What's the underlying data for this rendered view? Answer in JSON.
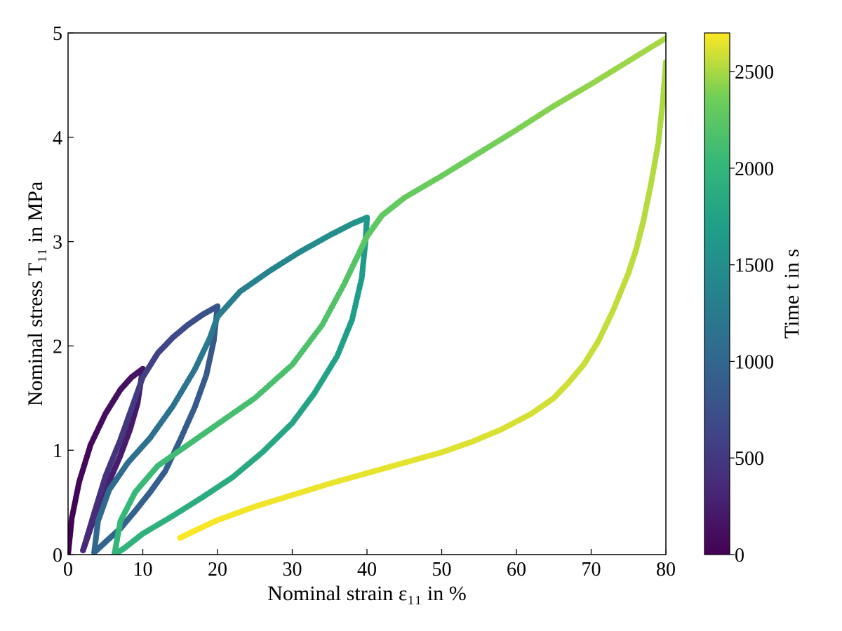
{
  "chart_data": {
    "type": "scatter",
    "xlabel": "Nominal strain ε₁₁ in %",
    "ylabel": "Nominal stress T₁₁ in MPa",
    "colorbar_label": "Time t in s",
    "xlim": [
      0,
      80
    ],
    "ylim": [
      0,
      5
    ],
    "x_ticks": [
      0,
      10,
      20,
      30,
      40,
      50,
      60,
      70,
      80
    ],
    "y_ticks": [
      0,
      1,
      2,
      3,
      4,
      5
    ],
    "colorbar_ticks": [
      0,
      500,
      1000,
      1500,
      2000,
      2500
    ],
    "colorbar_range": [
      0,
      2700
    ],
    "colormap": "viridis",
    "grid": false,
    "segments": [
      {
        "t_start": 0,
        "t_end": 170,
        "points": [
          [
            0,
            0
          ],
          [
            0.5,
            0.35
          ],
          [
            1.5,
            0.7
          ],
          [
            3,
            1.05
          ],
          [
            5,
            1.35
          ],
          [
            7,
            1.58
          ],
          [
            8.5,
            1.7
          ],
          [
            10,
            1.78
          ]
        ]
      },
      {
        "t_start": 170,
        "t_end": 340,
        "points": [
          [
            10,
            1.78
          ],
          [
            9.3,
            1.45
          ],
          [
            8.3,
            1.2
          ],
          [
            7,
            0.95
          ],
          [
            5.5,
            0.7
          ],
          [
            4,
            0.45
          ],
          [
            3,
            0.25
          ],
          [
            2,
            0.04
          ]
        ]
      },
      {
        "t_start": 340,
        "t_end": 560,
        "points": [
          [
            2,
            0.04
          ],
          [
            3.5,
            0.4
          ],
          [
            5,
            0.75
          ],
          [
            7,
            1.1
          ],
          [
            8.5,
            1.4
          ],
          [
            10,
            1.7
          ]
        ]
      },
      {
        "t_start": 560,
        "t_end": 800,
        "points": [
          [
            10,
            1.7
          ],
          [
            12,
            1.93
          ],
          [
            14,
            2.08
          ],
          [
            16,
            2.2
          ],
          [
            18,
            2.3
          ],
          [
            20,
            2.38
          ]
        ]
      },
      {
        "t_start": 800,
        "t_end": 1000,
        "points": [
          [
            20,
            2.38
          ],
          [
            19.5,
            2.05
          ],
          [
            18.5,
            1.72
          ],
          [
            17,
            1.42
          ],
          [
            15,
            1.1
          ],
          [
            13,
            0.8
          ],
          [
            11,
            0.6
          ],
          [
            9,
            0.42
          ],
          [
            7,
            0.25
          ],
          [
            5,
            0.12
          ],
          [
            3.5,
            0.02
          ]
        ]
      },
      {
        "t_start": 1000,
        "t_end": 1250,
        "points": [
          [
            3.5,
            0.02
          ],
          [
            4,
            0.32
          ],
          [
            5.5,
            0.62
          ],
          [
            8,
            0.88
          ],
          [
            11,
            1.12
          ],
          [
            14,
            1.42
          ],
          [
            17,
            1.78
          ],
          [
            19,
            2.08
          ],
          [
            20,
            2.28
          ]
        ]
      },
      {
        "t_start": 1250,
        "t_end": 1600,
        "points": [
          [
            20,
            2.28
          ],
          [
            23,
            2.52
          ],
          [
            27,
            2.72
          ],
          [
            31,
            2.9
          ],
          [
            35,
            3.06
          ],
          [
            38,
            3.17
          ],
          [
            40,
            3.23
          ]
        ]
      },
      {
        "t_start": 1600,
        "t_end": 2000,
        "points": [
          [
            40,
            3.23
          ],
          [
            39.8,
            3.0
          ],
          [
            39.3,
            2.65
          ],
          [
            38,
            2.25
          ],
          [
            36,
            1.9
          ],
          [
            33,
            1.55
          ],
          [
            30,
            1.26
          ],
          [
            26,
            0.98
          ],
          [
            22,
            0.74
          ],
          [
            18,
            0.55
          ],
          [
            14,
            0.37
          ],
          [
            10,
            0.2
          ],
          [
            7.5,
            0.06
          ],
          [
            6.2,
            0.0
          ]
        ]
      },
      {
        "t_start": 2000,
        "t_end": 2250,
        "points": [
          [
            6.2,
            0.0
          ],
          [
            7,
            0.32
          ],
          [
            9,
            0.6
          ],
          [
            12,
            0.85
          ],
          [
            16,
            1.05
          ],
          [
            20,
            1.25
          ],
          [
            25,
            1.5
          ],
          [
            30,
            1.82
          ],
          [
            34,
            2.2
          ],
          [
            37,
            2.6
          ],
          [
            39,
            2.9
          ],
          [
            40,
            3.05
          ]
        ]
      },
      {
        "t_start": 2250,
        "t_end": 2500,
        "points": [
          [
            40,
            3.05
          ],
          [
            42,
            3.25
          ],
          [
            45,
            3.42
          ],
          [
            50,
            3.63
          ],
          [
            55,
            3.85
          ],
          [
            60,
            4.07
          ],
          [
            65,
            4.3
          ],
          [
            70,
            4.51
          ],
          [
            75,
            4.73
          ],
          [
            80,
            4.95
          ]
        ]
      },
      {
        "t_start": 2500,
        "t_end": 2700,
        "points": [
          [
            80,
            4.72
          ],
          [
            79.6,
            4.35
          ],
          [
            79,
            3.95
          ],
          [
            78,
            3.55
          ],
          [
            77,
            3.2
          ],
          [
            76,
            2.92
          ],
          [
            75,
            2.7
          ],
          [
            73,
            2.35
          ],
          [
            71,
            2.05
          ],
          [
            69,
            1.82
          ],
          [
            67,
            1.65
          ],
          [
            65,
            1.5
          ],
          [
            62,
            1.35
          ],
          [
            58,
            1.2
          ],
          [
            54,
            1.08
          ],
          [
            50,
            0.98
          ],
          [
            45,
            0.88
          ],
          [
            40,
            0.78
          ],
          [
            35,
            0.68
          ],
          [
            30,
            0.57
          ],
          [
            25,
            0.46
          ],
          [
            20,
            0.33
          ],
          [
            17,
            0.23
          ],
          [
            15,
            0.16
          ]
        ]
      }
    ]
  }
}
